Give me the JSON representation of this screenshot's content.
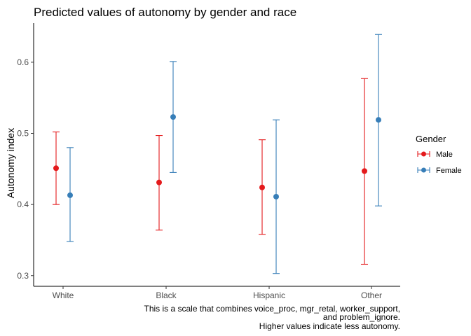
{
  "chart_data": {
    "type": "scatter",
    "title": "Predicted values of autonomy by gender and race",
    "xlabel": "",
    "ylabel": "Autonomy index",
    "categories": [
      "White",
      "Black",
      "Hispanic",
      "Other"
    ],
    "ylim": [
      0.285,
      0.655
    ],
    "yticks": [
      0.3,
      0.4,
      0.5,
      0.6
    ],
    "ytick_labels": [
      "0.3",
      "0.4",
      "0.5",
      "0.6"
    ],
    "grid": false,
    "legend": {
      "title": "Gender",
      "position": "right"
    },
    "series": [
      {
        "name": "Male",
        "color": "#e41a1c",
        "values": [
          0.451,
          0.431,
          0.424,
          0.447
        ],
        "lower": [
          0.4,
          0.364,
          0.358,
          0.316
        ],
        "upper": [
          0.502,
          0.497,
          0.491,
          0.577
        ]
      },
      {
        "name": "Female",
        "color": "#377eb8",
        "values": [
          0.413,
          0.523,
          0.411,
          0.519
        ],
        "lower": [
          0.348,
          0.445,
          0.303,
          0.398
        ],
        "upper": [
          0.48,
          0.601,
          0.519,
          0.639
        ]
      }
    ],
    "caption": [
      "This is a scale that combines voice_proc, mgr_retal, worker_support,",
      "and problem_ignore.",
      "Higher values indicate less autonomy."
    ]
  }
}
